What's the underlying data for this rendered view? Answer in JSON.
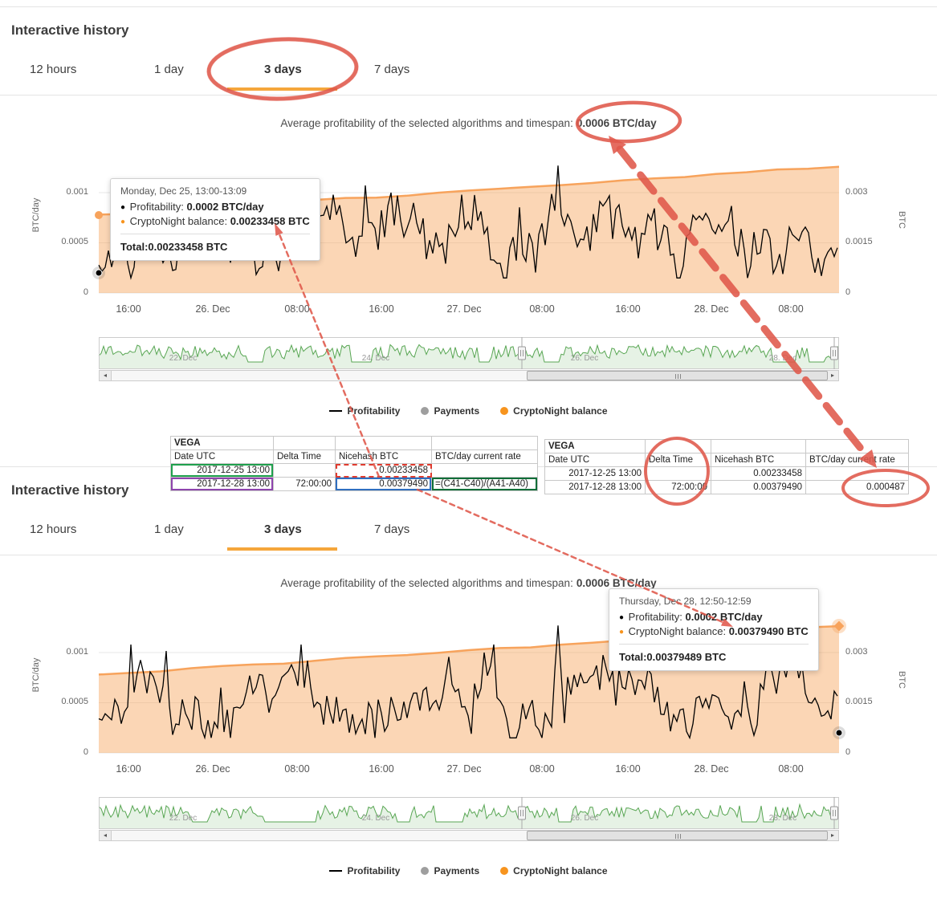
{
  "colors": {
    "accent_orange": "#f5a63b",
    "series_orange": "#f7a35c",
    "series_orange_fill": "rgba(247,163,92,0.45)",
    "series_black": "#000000",
    "navigator_green": "#58a653",
    "navigator_green_fill": "rgba(88,166,83,0.15)",
    "annotation_red": "#e0584b",
    "payments_gray": "#9e9e9e",
    "balance_legend_orange": "#f7941e"
  },
  "header": {
    "title": "Interactive history",
    "tabs": [
      {
        "label": "12 hours",
        "active": false
      },
      {
        "label": "1 day",
        "active": false
      },
      {
        "label": "3 days",
        "active": true
      },
      {
        "label": "7 days",
        "active": false
      }
    ]
  },
  "chart": {
    "title_prefix": "Average profitability of the selected algorithms and timespan:",
    "title_value": "0.0006 BTC/day",
    "y_left_label": "BTC/day",
    "y_left_ticks": [
      "0.001",
      "0.0005",
      "0"
    ],
    "y_right_label": "BTC",
    "y_right_ticks": [
      "0.003",
      "0.0015",
      "0"
    ],
    "x_ticks": [
      "16:00",
      "26. Dec",
      "08:00",
      "16:00",
      "27. Dec",
      "08:00",
      "16:00",
      "28. Dec",
      "08:00"
    ],
    "navigator_ticks": [
      "22. Dec",
      "24. Dec",
      "26. Dec",
      "28. Dec"
    ],
    "legend": [
      {
        "label": "Profitability"
      },
      {
        "label": "Payments"
      },
      {
        "label": "CryptoNight balance"
      }
    ]
  },
  "tooltip_top": {
    "date": "Monday, Dec 25, 13:00-13:09",
    "profitability_label": "Profitability:",
    "profitability_value": "0.0002 BTC/day",
    "balance_label": "CryptoNight balance:",
    "balance_value": "0.00233458 BTC",
    "total_label": "Total:",
    "total_value": "0.00233458 BTC"
  },
  "tooltip_bottom": {
    "date": "Thursday, Dec 28, 12:50-12:59",
    "profitability_label": "Profitability:",
    "profitability_value": "0.0002 BTC/day",
    "balance_label": "CryptoNight balance:",
    "balance_value": "0.00379490 BTC",
    "total_label": "Total:",
    "total_value": "0.00379489 BTC"
  },
  "tables": {
    "left": {
      "title": "VEGA",
      "headers": [
        "Date UTC",
        "Delta Time",
        "Nicehash BTC",
        "BTC/day current rate"
      ],
      "rows": [
        [
          "2017-12-25 13:00",
          "",
          "0.00233458",
          ""
        ],
        [
          "2017-12-28 13:00",
          "72:00:00",
          "0.00379490",
          "=(C41-C40)/(A41-A40)"
        ]
      ]
    },
    "right": {
      "title": "VEGA",
      "headers": [
        "Date UTC",
        "Delta Time",
        "Nicehash BTC",
        "BTC/day current rate"
      ],
      "rows": [
        [
          "2017-12-25 13:00",
          "",
          "0.00233458",
          ""
        ],
        [
          "2017-12-28 13:00",
          "72:00:00",
          "0.00379490",
          "0.000487"
        ]
      ]
    }
  },
  "annotations": {
    "highlighted_values": [
      "3 days",
      "0.0006 BTC/day",
      "Delta Time",
      "0.000487"
    ]
  },
  "chart_data": [
    {
      "type": "line",
      "title": "Average profitability of the selected algorithms and timespan: 0.0006 BTC/day",
      "x_ticks": [
        "16:00",
        "26. Dec",
        "08:00",
        "16:00",
        "27. Dec",
        "08:00",
        "16:00",
        "28. Dec",
        "08:00"
      ],
      "x_range": [
        "2017-12-25 13:00",
        "2017-12-28 13:09"
      ],
      "y_left": {
        "label": "BTC/day",
        "ticks": [
          0,
          0.0005,
          0.001
        ]
      },
      "y_right": {
        "label": "BTC",
        "ticks": [
          0,
          0.0015,
          0.003
        ]
      },
      "grid": true,
      "legend_position": "bottom",
      "series": [
        {
          "name": "Profitability",
          "type": "line",
          "color": "#000000",
          "axis": "left",
          "description": "noisy per-10-minute profitability fluctuating between ~0.0002 and ~0.001 BTC/day, average 0.0006 BTC/day, one spike to ~0.00127",
          "hovered_point": {
            "label": "Monday, Dec 25, 13:00-13:09",
            "value": 0.0002
          }
        },
        {
          "name": "CryptoNight balance",
          "type": "area",
          "color": "#f7a35c",
          "axis": "right",
          "start_value": 0.00233458,
          "end_value": 0.0037949
        },
        {
          "name": "Payments",
          "type": "scatter",
          "color": "#9e9e9e",
          "values": []
        }
      ],
      "navigator": {
        "ticks": [
          "22. Dec",
          "24. Dec",
          "26. Dec",
          "28. Dec"
        ],
        "selected_range_fraction": [
          0.57,
          1.0
        ]
      }
    },
    {
      "type": "line",
      "title": "Average profitability of the selected algorithms and timespan: 0.0006 BTC/day",
      "x_ticks": [
        "16:00",
        "26. Dec",
        "08:00",
        "16:00",
        "27. Dec",
        "08:00",
        "16:00",
        "28. Dec",
        "08:00"
      ],
      "x_range": [
        "2017-12-25 13:00",
        "2017-12-28 12:59"
      ],
      "y_left": {
        "label": "BTC/day",
        "ticks": [
          0,
          0.0005,
          0.001
        ]
      },
      "y_right": {
        "label": "BTC",
        "ticks": [
          0,
          0.0015,
          0.003
        ]
      },
      "grid": true,
      "legend_position": "bottom",
      "series": [
        {
          "name": "Profitability",
          "type": "line",
          "color": "#000000",
          "axis": "left",
          "description": "same noisy profitability series, average 0.0006 BTC/day",
          "hovered_point": {
            "label": "Thursday, Dec 28, 12:50-12:59",
            "value": 0.0002
          }
        },
        {
          "name": "CryptoNight balance",
          "type": "area",
          "color": "#f7a35c",
          "axis": "right",
          "start_value": 0.00233458,
          "end_value": 0.00379489
        },
        {
          "name": "Payments",
          "type": "scatter",
          "color": "#9e9e9e",
          "values": []
        }
      ],
      "navigator": {
        "ticks": [
          "22. Dec",
          "24. Dec",
          "26. Dec",
          "28. Dec"
        ],
        "selected_range_fraction": [
          0.57,
          1.0
        ]
      }
    }
  ]
}
